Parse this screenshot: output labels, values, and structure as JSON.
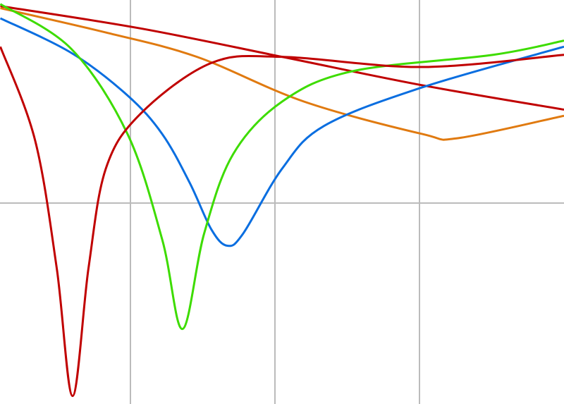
{
  "chart_data": {
    "type": "line",
    "title": "",
    "xlabel": "",
    "ylabel": "",
    "xlim": [
      0.1,
      4.0
    ],
    "ylim": [
      -0.99,
      1.0
    ],
    "grid": true,
    "x_gridlines": [
      1,
      2,
      3
    ],
    "y_gridlines": [
      0
    ],
    "grid_color": "#bbbbbb",
    "legend": "none",
    "series": [
      {
        "color": "#c00000",
        "points": [
          [
            0.1,
            0.97
          ],
          [
            1.07,
            0.86
          ],
          [
            2.05,
            0.72
          ],
          [
            3.02,
            0.58
          ],
          [
            4.0,
            0.46
          ]
        ]
      },
      {
        "color": "#e07a10",
        "points": [
          [
            0.1,
            0.96
          ],
          [
            0.83,
            0.84
          ],
          [
            1.46,
            0.72
          ],
          [
            2.2,
            0.5
          ],
          [
            3.02,
            0.34
          ],
          [
            3.27,
            0.32
          ],
          [
            4.0,
            0.43
          ]
        ]
      },
      {
        "color": "#0a6ee0",
        "points": [
          [
            0.1,
            0.91
          ],
          [
            0.59,
            0.74
          ],
          [
            0.98,
            0.53
          ],
          [
            1.22,
            0.34
          ],
          [
            1.41,
            0.1
          ],
          [
            1.56,
            -0.13
          ],
          [
            1.67,
            -0.21
          ],
          [
            1.78,
            -0.15
          ],
          [
            2.05,
            0.17
          ],
          [
            2.34,
            0.38
          ],
          [
            3.02,
            0.57
          ],
          [
            4.0,
            0.77
          ]
        ]
      },
      {
        "color": "#3ddc00",
        "points": [
          [
            0.1,
            0.98
          ],
          [
            0.59,
            0.76
          ],
          [
            0.98,
            0.34
          ],
          [
            1.22,
            -0.18
          ],
          [
            1.36,
            -0.62
          ],
          [
            1.51,
            -0.15
          ],
          [
            1.71,
            0.24
          ],
          [
            2.05,
            0.5
          ],
          [
            2.54,
            0.65
          ],
          [
            3.51,
            0.73
          ],
          [
            4.0,
            0.8
          ]
        ]
      },
      {
        "color": "#c00000",
        "points": [
          [
            0.1,
            0.77
          ],
          [
            0.34,
            0.31
          ],
          [
            0.49,
            -0.32
          ],
          [
            0.6,
            -0.95
          ],
          [
            0.71,
            -0.32
          ],
          [
            0.83,
            0.17
          ],
          [
            1.07,
            0.44
          ],
          [
            1.56,
            0.69
          ],
          [
            2.05,
            0.72
          ],
          [
            3.02,
            0.67
          ],
          [
            4.0,
            0.73
          ]
        ]
      }
    ]
  }
}
